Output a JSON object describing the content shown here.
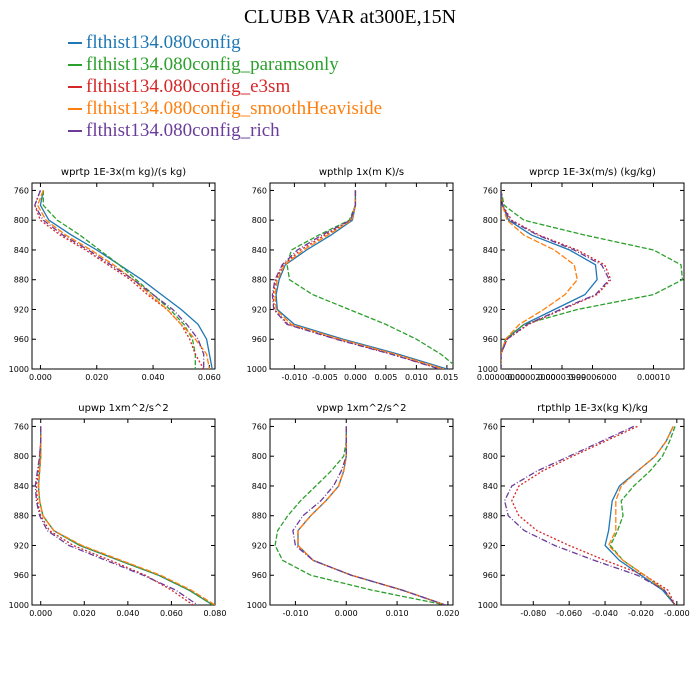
{
  "title": "CLUBB VAR at300E,15N",
  "legend": [
    {
      "label": "flthist134.080config",
      "color": "#1f77b4"
    },
    {
      "label": "flthist134.080config_paramsonly",
      "color": "#2ca02c"
    },
    {
      "label": "flthist134.080config_e3sm",
      "color": "#d62728"
    },
    {
      "label": "flthist134.080config_smoothHeaviside",
      "color": "#ff7f0e"
    },
    {
      "label": "flthist134.080config_rich",
      "color": "#6a3d9a"
    }
  ],
  "chart_data": [
    {
      "type": "line",
      "title": "wprtp  1E-3x(m kg)/(s kg)",
      "xlim": [
        -0.003,
        0.062
      ],
      "ylim": [
        1000,
        750
      ],
      "xticks": [
        "0.000",
        "0.020",
        "0.040",
        "0.060"
      ],
      "xtick_values": [
        0,
        0.02,
        0.04,
        0.06
      ],
      "yticks": [
        760,
        800,
        840,
        880,
        920,
        960,
        1000
      ],
      "y": [
        760,
        780,
        800,
        820,
        840,
        860,
        880,
        900,
        920,
        940,
        960,
        980,
        1000
      ],
      "series": [
        {
          "name": "flthist134.080config",
          "values": [
            0.001,
            0.0,
            0.003,
            0.011,
            0.02,
            0.028,
            0.036,
            0.043,
            0.05,
            0.056,
            0.059,
            0.06,
            0.061
          ]
        },
        {
          "name": "flthist134.080config_paramsonly",
          "values": [
            0.001,
            0.001,
            0.006,
            0.014,
            0.021,
            0.028,
            0.034,
            0.04,
            0.046,
            0.051,
            0.054,
            0.055,
            0.055
          ]
        },
        {
          "name": "flthist134.080config_e3sm",
          "values": [
            0.0,
            -0.002,
            0.0,
            0.007,
            0.016,
            0.024,
            0.032,
            0.038,
            0.045,
            0.05,
            0.053,
            0.055,
            0.058
          ]
        },
        {
          "name": "flthist134.080config_smoothHeaviside",
          "values": [
            0.001,
            -0.001,
            0.002,
            0.009,
            0.018,
            0.026,
            0.033,
            0.039,
            0.045,
            0.05,
            0.055,
            0.059,
            0.06
          ]
        },
        {
          "name": "flthist134.080config_rich",
          "values": [
            0.0,
            -0.002,
            0.001,
            0.008,
            0.017,
            0.025,
            0.033,
            0.04,
            0.047,
            0.052,
            0.056,
            0.058,
            0.058
          ]
        }
      ]
    },
    {
      "type": "line",
      "title": "wpthlp  1x(m K)/s",
      "xlim": [
        -0.014,
        0.016
      ],
      "ylim": [
        1000,
        750
      ],
      "xticks": [
        "-0.010",
        "-0.005",
        "0.000",
        "0.005",
        "0.010",
        "0.015"
      ],
      "xtick_values": [
        -0.01,
        -0.005,
        0,
        0.005,
        0.01,
        0.015
      ],
      "yticks": [
        760,
        800,
        840,
        880,
        920,
        960,
        1000
      ],
      "y": [
        760,
        780,
        800,
        820,
        840,
        860,
        880,
        900,
        920,
        940,
        960,
        980,
        1000
      ],
      "series": [
        {
          "name": "flthist134.080config",
          "values": [
            0.0,
            0.0,
            -0.0005,
            -0.004,
            -0.008,
            -0.0115,
            -0.0125,
            -0.013,
            -0.0128,
            -0.01,
            -0.002,
            0.007,
            0.015
          ]
        },
        {
          "name": "flthist134.080config_paramsonly",
          "values": [
            0.0,
            0.0,
            -0.001,
            -0.006,
            -0.0105,
            -0.0112,
            -0.0108,
            -0.007,
            -0.001,
            0.005,
            0.01,
            0.014,
            0.017
          ]
        },
        {
          "name": "flthist134.080config_e3sm",
          "values": [
            0.0,
            0.0,
            -0.0007,
            -0.005,
            -0.009,
            -0.0118,
            -0.013,
            -0.0135,
            -0.0133,
            -0.011,
            -0.003,
            0.006,
            0.014
          ]
        },
        {
          "name": "flthist134.080config_smoothHeaviside",
          "values": [
            0.0,
            0.0,
            -0.0006,
            -0.0045,
            -0.0085,
            -0.0116,
            -0.0128,
            -0.0132,
            -0.013,
            -0.0105,
            -0.0025,
            0.0065,
            0.0145
          ]
        },
        {
          "name": "flthist134.080config_rich",
          "values": [
            0.0,
            0.0,
            -0.0008,
            -0.0055,
            -0.0095,
            -0.012,
            -0.0132,
            -0.0136,
            -0.0134,
            -0.0112,
            -0.0032,
            0.0058,
            0.0138
          ]
        }
      ]
    },
    {
      "type": "line",
      "title": "wprcp  1E-3x(m/s) (kg/kg)",
      "xlim": [
        0,
        0.00012
      ],
      "ylim": [
        1000,
        750
      ],
      "xticks": [
        "0.00000000",
        "0.00002000",
        "0.00003999",
        "0.00006000",
        "0.00010"
      ],
      "xtick_values": [
        0,
        2e-05,
        4e-05,
        6e-05,
        0.0001
      ],
      "yticks": [
        760,
        800,
        840,
        880,
        920,
        960,
        1000
      ],
      "y": [
        760,
        780,
        800,
        820,
        840,
        860,
        880,
        900,
        920,
        940,
        960,
        980,
        1000
      ],
      "series": [
        {
          "name": "flthist134.080config",
          "values": [
            0.0,
            1e-06,
            5e-06,
            2e-05,
            4.5e-05,
            6.2e-05,
            6.3e-05,
            5.5e-05,
            3.5e-05,
            1.5e-05,
            3e-06,
            0.0,
            0.0
          ]
        },
        {
          "name": "flthist134.080config_paramsonly",
          "values": [
            0.0,
            2e-06,
            1.5e-05,
            5.5e-05,
            0.0001,
            0.000118,
            0.000119,
            0.0001,
            5e-05,
            1.5e-05,
            3e-06,
            0.0,
            0.0
          ]
        },
        {
          "name": "flthist134.080config_e3sm",
          "values": [
            0.0,
            1e-06,
            7e-06,
            2.5e-05,
            5e-05,
            6.8e-05,
            7.2e-05,
            6.3e-05,
            4e-05,
            1.8e-05,
            4e-06,
            0.0,
            0.0
          ]
        },
        {
          "name": "flthist134.080config_smoothHeaviside",
          "values": [
            0.0,
            1e-06,
            4e-06,
            1.5e-05,
            3.5e-05,
            4.8e-05,
            5e-05,
            4.2e-05,
            2.8e-05,
            1.2e-05,
            3e-06,
            0.0,
            0.0
          ]
        },
        {
          "name": "flthist134.080config_rich",
          "values": [
            0.0,
            1e-06,
            6e-06,
            2.4e-05,
            4.8e-05,
            6.6e-05,
            7.1e-05,
            6.2e-05,
            3.9e-05,
            1.7e-05,
            4e-06,
            0.0,
            0.0
          ]
        }
      ]
    },
    {
      "type": "line",
      "title": "upwp  1xm^2/s^2",
      "xlim": [
        -0.004,
        0.08
      ],
      "ylim": [
        1000,
        750
      ],
      "xticks": [
        "0.000",
        "0.020",
        "0.040",
        "0.060",
        "0.080"
      ],
      "xtick_values": [
        0,
        0.02,
        0.04,
        0.06,
        0.08
      ],
      "yticks": [
        760,
        800,
        840,
        880,
        920,
        960,
        1000
      ],
      "y": [
        760,
        780,
        800,
        820,
        840,
        860,
        880,
        900,
        920,
        940,
        960,
        980,
        1000
      ],
      "series": [
        {
          "name": "flthist134.080config",
          "values": [
            0.0,
            0.0,
            0.0,
            -0.0005,
            -0.001,
            -0.0005,
            0.001,
            0.006,
            0.018,
            0.036,
            0.054,
            0.068,
            0.079
          ]
        },
        {
          "name": "flthist134.080config_paramsonly",
          "values": [
            0.0,
            0.0,
            0.0,
            -0.0005,
            -0.001,
            -0.0005,
            0.001,
            0.006,
            0.018,
            0.036,
            0.054,
            0.068,
            0.079
          ]
        },
        {
          "name": "flthist134.080config_e3sm",
          "values": [
            0.0,
            0.0,
            -0.0005,
            -0.001,
            -0.002,
            -0.0015,
            0.0,
            0.004,
            0.015,
            0.032,
            0.048,
            0.06,
            0.07
          ]
        },
        {
          "name": "flthist134.080config_smoothHeviside",
          "values": [
            0.0,
            0.0,
            0.0,
            -0.0005,
            -0.001,
            -0.0005,
            0.001,
            0.006,
            0.019,
            0.037,
            0.055,
            0.069,
            0.08
          ]
        },
        {
          "name": "flthist134.080config_rich",
          "values": [
            0.0,
            0.0,
            -0.0005,
            -0.0015,
            -0.0025,
            -0.002,
            -0.0005,
            0.003,
            0.013,
            0.03,
            0.047,
            0.062,
            0.072
          ]
        }
      ]
    },
    {
      "type": "line",
      "title": "vpwp  1xm^2/s^2",
      "xlim": [
        -0.015,
        0.021
      ],
      "ylim": [
        1000,
        750
      ],
      "xticks": [
        "-0.010",
        "0.000",
        "0.010",
        "0.020"
      ],
      "xtick_values": [
        -0.01,
        0,
        0.01,
        0.02
      ],
      "yticks": [
        760,
        800,
        840,
        880,
        920,
        960,
        1000
      ],
      "y": [
        760,
        780,
        800,
        820,
        840,
        860,
        880,
        900,
        920,
        940,
        960,
        980,
        1000
      ],
      "series": [
        {
          "name": "flthist134.080config",
          "values": [
            0.0,
            0.0,
            0.0,
            -0.0005,
            -0.0015,
            -0.004,
            -0.007,
            -0.0095,
            -0.0095,
            -0.0065,
            0.001,
            0.011,
            0.0195
          ]
        },
        {
          "name": "flthist134.080config_paramsonly",
          "values": [
            0.0,
            0.0,
            -0.0005,
            -0.003,
            -0.006,
            -0.009,
            -0.0115,
            -0.0135,
            -0.014,
            -0.0125,
            -0.007,
            0.005,
            0.0195
          ]
        },
        {
          "name": "flthist134.080config_e3sm",
          "values": [
            0.0,
            0.0,
            0.0,
            -0.0005,
            -0.0015,
            -0.004,
            -0.007,
            -0.0095,
            -0.0095,
            -0.0065,
            0.001,
            0.011,
            0.0195
          ]
        },
        {
          "name": "flthist134.080config_smoothHeaviside",
          "values": [
            0.0,
            0.0,
            0.0,
            -0.0005,
            -0.0015,
            -0.004,
            -0.007,
            -0.0095,
            -0.0095,
            -0.0065,
            0.001,
            0.011,
            0.0195
          ]
        },
        {
          "name": "flthist134.080config_rich",
          "values": [
            0.0,
            0.0,
            0.0,
            -0.001,
            -0.0025,
            -0.005,
            -0.0085,
            -0.0105,
            -0.01,
            -0.0065,
            0.001,
            0.011,
            0.0195
          ]
        }
      ]
    },
    {
      "type": "line",
      "title": "rtpthlp  1E-3x(kg K)/kg",
      "xlim": [
        -0.098,
        0.004
      ],
      "ylim": [
        1000,
        750
      ],
      "xticks": [
        "-0.080",
        "-0.060",
        "-0.040",
        "-0.020",
        "-0.000"
      ],
      "xtick_values": [
        -0.08,
        -0.06,
        -0.04,
        -0.02,
        0
      ],
      "yticks": [
        760,
        800,
        840,
        880,
        920,
        960,
        1000
      ],
      "y": [
        760,
        780,
        800,
        820,
        840,
        860,
        880,
        900,
        920,
        940,
        960,
        980,
        1000
      ],
      "series": [
        {
          "name": "flthist134.080config",
          "values": [
            -0.002,
            -0.006,
            -0.012,
            -0.022,
            -0.032,
            -0.036,
            -0.037,
            -0.038,
            -0.04,
            -0.032,
            -0.02,
            -0.008,
            -0.001
          ]
        },
        {
          "name": "flthist134.080config_paramsonly",
          "values": [
            -0.001,
            -0.004,
            -0.008,
            -0.015,
            -0.024,
            -0.031,
            -0.03,
            -0.033,
            -0.037,
            -0.03,
            -0.018,
            -0.007,
            -0.001
          ]
        },
        {
          "name": "flthist134.080config_e3sm",
          "values": [
            -0.022,
            -0.04,
            -0.058,
            -0.075,
            -0.088,
            -0.092,
            -0.088,
            -0.078,
            -0.06,
            -0.04,
            -0.018,
            -0.005,
            -0.001
          ]
        },
        {
          "name": "flthist134.080config_smoothHeaviside",
          "values": [
            -0.002,
            -0.006,
            -0.012,
            -0.022,
            -0.031,
            -0.034,
            -0.034,
            -0.034,
            -0.038,
            -0.03,
            -0.018,
            -0.007,
            -0.001
          ]
        },
        {
          "name": "flthist134.080config_rich",
          "values": [
            -0.024,
            -0.042,
            -0.06,
            -0.078,
            -0.092,
            -0.096,
            -0.094,
            -0.085,
            -0.068,
            -0.046,
            -0.022,
            -0.007,
            -0.001
          ]
        }
      ]
    }
  ]
}
